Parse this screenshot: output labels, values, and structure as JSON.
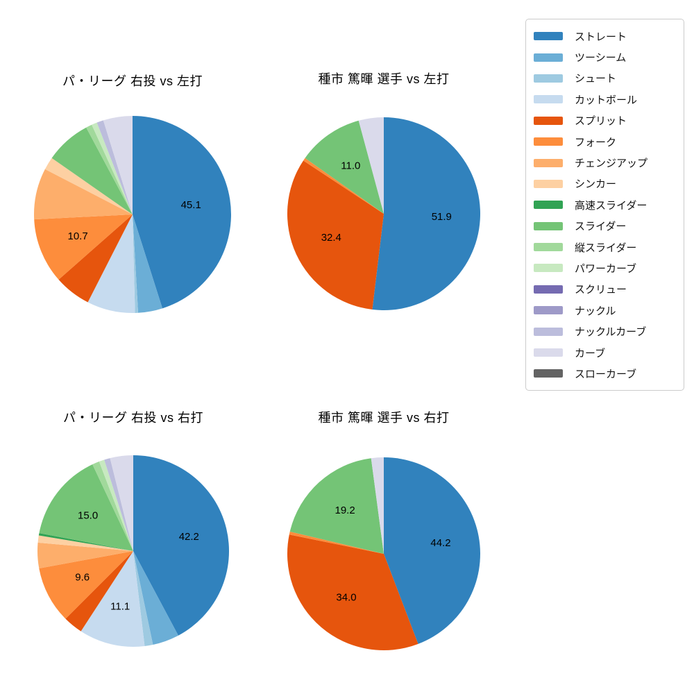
{
  "figure": {
    "background": "#ffffff"
  },
  "legend": {
    "items": [
      {
        "label": "ストレート",
        "color": "#3182bd"
      },
      {
        "label": "ツーシーム",
        "color": "#6baed6"
      },
      {
        "label": "シュート",
        "color": "#9ecae1"
      },
      {
        "label": "カットボール",
        "color": "#c6dbef"
      },
      {
        "label": "スプリット",
        "color": "#e6550d"
      },
      {
        "label": "フォーク",
        "color": "#fd8d3c"
      },
      {
        "label": "チェンジアップ",
        "color": "#fdae6b"
      },
      {
        "label": "シンカー",
        "color": "#fdd0a2"
      },
      {
        "label": "高速スライダー",
        "color": "#31a354"
      },
      {
        "label": "スライダー",
        "color": "#74c476"
      },
      {
        "label": "縦スライダー",
        "color": "#a1d99b"
      },
      {
        "label": "パワーカーブ",
        "color": "#c7e9c0"
      },
      {
        "label": "スクリュー",
        "color": "#756bb1"
      },
      {
        "label": "ナックル",
        "color": "#9e9ac8"
      },
      {
        "label": "ナックルカーブ",
        "color": "#bcbddc"
      },
      {
        "label": "カーブ",
        "color": "#dadaeb"
      },
      {
        "label": "スローカーブ",
        "color": "#636363"
      }
    ]
  },
  "chart_data": [
    {
      "type": "pie",
      "title": "パ・リーグ 右投 vs 左打",
      "start_angle": "top-clockwise",
      "autopct_min": 9,
      "label_distance": 0.6,
      "labels": [
        "ストレート",
        "ツーシーム",
        "シュート",
        "カットボール",
        "スプリット",
        "フォーク",
        "チェンジアップ",
        "シンカー",
        "スライダー",
        "縦スライダー",
        "パワーカーブ",
        "ナックルカーブ",
        "カーブ"
      ],
      "values": [
        45.1,
        4.0,
        0.5,
        7.9,
        6.0,
        10.7,
        8.4,
        2.1,
        7.5,
        1.0,
        0.9,
        1.1,
        4.8
      ],
      "shown_value_labels": [
        "45.1",
        "10.7"
      ]
    },
    {
      "type": "pie",
      "title": "種市 篤暉 選手 vs 左打",
      "start_angle": "top-clockwise",
      "autopct_min": 9,
      "label_distance": 0.6,
      "labels": [
        "ストレート",
        "スプリット",
        "フォーク",
        "スライダー",
        "カーブ"
      ],
      "values": [
        51.9,
        32.4,
        0.5,
        11.0,
        4.2
      ],
      "shown_value_labels": [
        "51.9",
        "32.4",
        "11.0"
      ]
    },
    {
      "type": "pie",
      "title": "パ・リーグ 右投 vs 右打",
      "start_angle": "top-clockwise",
      "autopct_min": 9,
      "label_distance": 0.6,
      "labels": [
        "ストレート",
        "ツーシーム",
        "シュート",
        "カットボール",
        "スプリット",
        "フォーク",
        "チェンジアップ",
        "シンカー",
        "高速スライダー",
        "スライダー",
        "縦スライダー",
        "パワーカーブ",
        "ナックルカーブ",
        "カーブ"
      ],
      "values": [
        42.2,
        4.5,
        1.4,
        11.1,
        3.3,
        9.6,
        4.3,
        1.2,
        0.4,
        15.0,
        1.2,
        0.9,
        1.0,
        3.9
      ],
      "shown_value_labels": [
        "42.2",
        "11.1",
        "9.6",
        "15.0"
      ]
    },
    {
      "type": "pie",
      "title": "種市 篤暉 選手 vs 右打",
      "start_angle": "top-clockwise",
      "autopct_min": 9,
      "label_distance": 0.6,
      "labels": [
        "ストレート",
        "スプリット",
        "フォーク",
        "スライダー",
        "カーブ"
      ],
      "values": [
        44.2,
        34.0,
        0.5,
        19.2,
        2.1
      ],
      "shown_value_labels": [
        "44.2",
        "34.0",
        "19.2"
      ]
    }
  ]
}
